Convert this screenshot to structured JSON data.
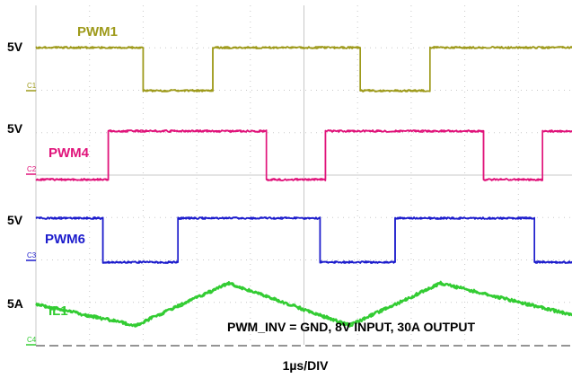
{
  "chart_data": {
    "type": "line",
    "title": "",
    "xlabel": "1µs/DIV",
    "ylabel": "",
    "annotation": "PWM_INV = GND, 8V INPUT, 30A OUTPUT",
    "x_unit": "µs",
    "xlim": [
      0,
      10
    ],
    "grid": true,
    "series": [
      {
        "name": "PWM1",
        "channel_marker": "C1",
        "scale_label": "5V",
        "color": "#9e9a1b",
        "x": [
          0,
          2.0,
          2.0,
          3.3,
          3.3,
          6.05,
          6.05,
          7.35,
          7.35,
          10
        ],
        "values": [
          1,
          1,
          0,
          0,
          1,
          1,
          0,
          0,
          1,
          1
        ]
      },
      {
        "name": "PWM4",
        "channel_marker": "C2",
        "scale_label": "5V",
        "color": "#e0137a",
        "x": [
          0,
          1.35,
          1.35,
          4.3,
          4.3,
          5.4,
          5.4,
          8.35,
          8.35,
          9.45,
          9.45,
          10
        ],
        "values": [
          0,
          0,
          1,
          1,
          0,
          0,
          1,
          1,
          0,
          0,
          1,
          1
        ]
      },
      {
        "name": "PWM6",
        "channel_marker": "C3",
        "scale_label": "5V",
        "color": "#1c1ccc",
        "x": [
          0,
          1.25,
          1.25,
          2.65,
          2.65,
          5.3,
          5.3,
          6.7,
          6.7,
          9.3,
          9.3,
          10
        ],
        "values": [
          1,
          1,
          0,
          0,
          1,
          1,
          0,
          0,
          1,
          1,
          0,
          0
        ]
      },
      {
        "name": "IL1",
        "channel_marker": "C4",
        "scale_label": "5A",
        "color": "#33cc33",
        "x": [
          0,
          1.85,
          3.6,
          5.85,
          7.55,
          10
        ],
        "values": [
          31.5,
          27.5,
          35.5,
          27.5,
          35.5,
          29.5
        ]
      }
    ]
  }
}
